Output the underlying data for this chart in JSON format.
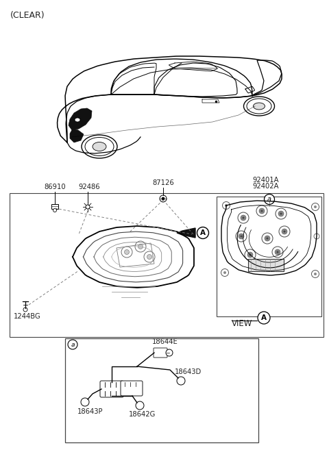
{
  "bg_color": "#ffffff",
  "text_color": "#222222",
  "line_color": "#1a1a1a",
  "labels": {
    "clear": "(CLEAR)",
    "86910": "86910",
    "92486": "92486",
    "87126": "87126",
    "92401A": "92401A",
    "92402A": "92402A",
    "1244BG": "1244BG",
    "view_a": "VIEW",
    "18644E": "18644E",
    "18643P": "18643P",
    "18642G": "18642G",
    "18643D": "18643D"
  },
  "figsize": [
    4.8,
    6.57
  ],
  "dpi": 100
}
